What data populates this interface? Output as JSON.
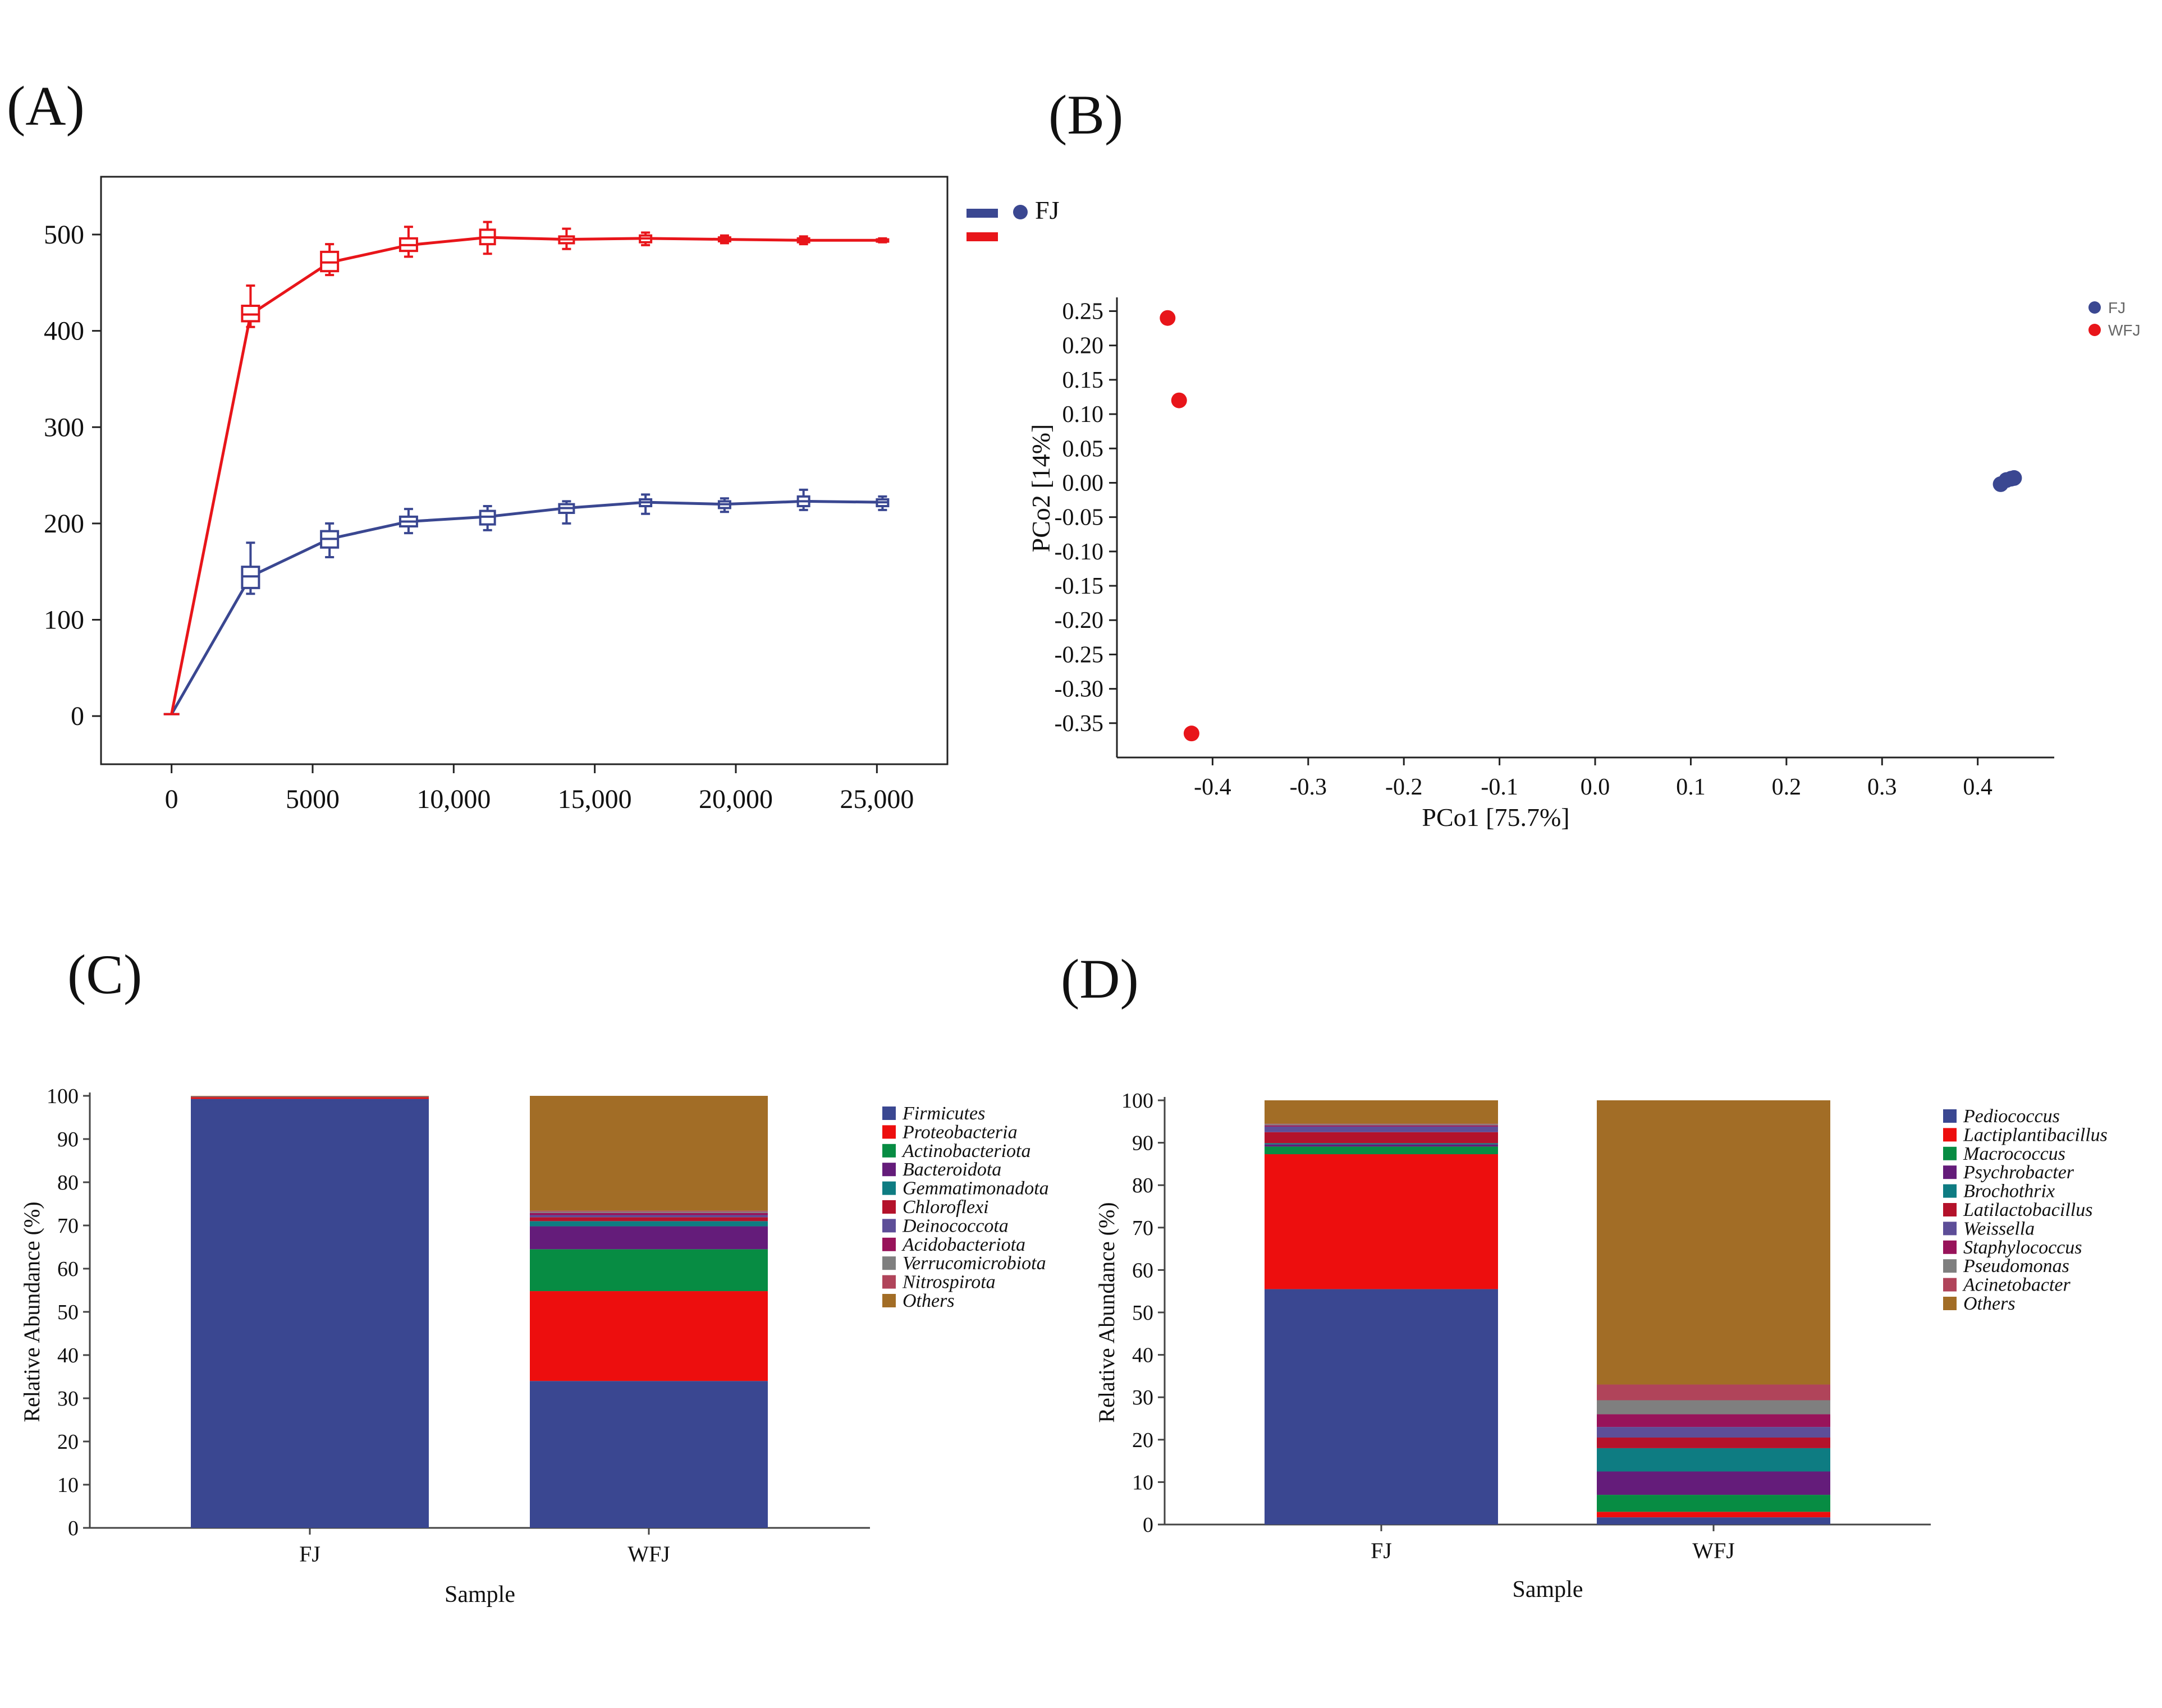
{
  "panels": {
    "A": {
      "label": "(A)"
    },
    "B": {
      "label": "(B)"
    },
    "C": {
      "label": "(C)"
    },
    "D": {
      "label": "(D)"
    }
  },
  "colors": {
    "navy": "#3a4791",
    "red": "#e8151a"
  },
  "chart_data": [
    {
      "panel": "A",
      "type": "line",
      "xlabel": "",
      "ylabel": "",
      "xlim": [
        -2500,
        27500
      ],
      "ylim": [
        -50,
        560
      ],
      "x_ticks": [
        0,
        5000,
        10000,
        15000,
        20000,
        25000
      ],
      "x_tick_labels": [
        "0",
        "5000",
        "10,000",
        "15,000",
        "20,000",
        "25,000"
      ],
      "y_ticks": [
        0,
        100,
        200,
        300,
        400,
        500
      ],
      "y_tick_labels": [
        "0",
        "100",
        "200",
        "300",
        "400",
        "500"
      ],
      "legend": {
        "position": "top-right",
        "entries": [
          "FJ"
        ]
      },
      "series": [
        {
          "name": "FJ",
          "color": "#3a4791",
          "points": [
            {
              "x": 0,
              "y": 2,
              "q1": 2,
              "q3": 2,
              "min": 2,
              "max": 2
            },
            {
              "x": 2800,
              "y": 145,
              "q1": 133,
              "q3": 155,
              "min": 127,
              "max": 180
            },
            {
              "x": 5600,
              "y": 184,
              "q1": 175,
              "q3": 192,
              "min": 165,
              "max": 200
            },
            {
              "x": 8400,
              "y": 202,
              "q1": 197,
              "q3": 207,
              "min": 190,
              "max": 215
            },
            {
              "x": 11200,
              "y": 207,
              "q1": 199,
              "q3": 213,
              "min": 193,
              "max": 218
            },
            {
              "x": 14000,
              "y": 216,
              "q1": 211,
              "q3": 220,
              "min": 200,
              "max": 223
            },
            {
              "x": 16800,
              "y": 222,
              "q1": 218,
              "q3": 225,
              "min": 210,
              "max": 230
            },
            {
              "x": 19600,
              "y": 220,
              "q1": 216,
              "q3": 223,
              "min": 212,
              "max": 226
            },
            {
              "x": 22400,
              "y": 223,
              "q1": 218,
              "q3": 228,
              "min": 214,
              "max": 235
            },
            {
              "x": 25200,
              "y": 222,
              "q1": 218,
              "q3": 225,
              "min": 214,
              "max": 228
            }
          ]
        },
        {
          "name": "",
          "color": "#e8151a",
          "points": [
            {
              "x": 0,
              "y": 2,
              "q1": 2,
              "q3": 2,
              "min": 2,
              "max": 2
            },
            {
              "x": 2800,
              "y": 417,
              "q1": 410,
              "q3": 426,
              "min": 404,
              "max": 447
            },
            {
              "x": 5600,
              "y": 471,
              "q1": 462,
              "q3": 482,
              "min": 458,
              "max": 490
            },
            {
              "x": 8400,
              "y": 489,
              "q1": 483,
              "q3": 496,
              "min": 477,
              "max": 508
            },
            {
              "x": 11200,
              "y": 497,
              "q1": 490,
              "q3": 505,
              "min": 480,
              "max": 513
            },
            {
              "x": 14000,
              "y": 495,
              "q1": 491,
              "q3": 498,
              "min": 485,
              "max": 506
            },
            {
              "x": 16800,
              "y": 496,
              "q1": 492,
              "q3": 499,
              "min": 489,
              "max": 502
            },
            {
              "x": 19600,
              "y": 495,
              "q1": 493,
              "q3": 497,
              "min": 491,
              "max": 499
            },
            {
              "x": 22400,
              "y": 494,
              "q1": 492,
              "q3": 496,
              "min": 490,
              "max": 498
            },
            {
              "x": 25200,
              "y": 494,
              "q1": 493,
              "q3": 495,
              "min": 492,
              "max": 496
            }
          ]
        }
      ]
    },
    {
      "panel": "B",
      "type": "scatter",
      "xlabel": "PCo1 [75.7%]",
      "ylabel": "PCo2 [14%]",
      "xlim": [
        -0.5,
        0.48
      ],
      "ylim": [
        -0.4,
        0.27
      ],
      "x_ticks": [
        -0.4,
        -0.3,
        -0.2,
        -0.1,
        0.0,
        0.1,
        0.2,
        0.3,
        0.4
      ],
      "x_tick_labels": [
        "-0.4",
        "-0.3",
        "-0.2",
        "-0.1",
        "0.0",
        "0.1",
        "0.2",
        "0.3",
        "0.4"
      ],
      "y_ticks": [
        0.25,
        0.2,
        0.15,
        0.1,
        0.05,
        0.0,
        -0.05,
        -0.1,
        -0.15,
        -0.2,
        -0.25,
        -0.3,
        -0.35
      ],
      "y_tick_labels": [
        "0.25",
        "0.20",
        "0.15",
        "0.10",
        "0.05",
        "0.00",
        "-0.05",
        "-0.10",
        "-0.15",
        "-0.20",
        "-0.25",
        "-0.30",
        "-0.35"
      ],
      "legend": {
        "position": "top-right",
        "entries": [
          "FJ",
          "WFJ"
        ]
      },
      "series": [
        {
          "name": "FJ",
          "color": "#3a4791",
          "points": [
            {
              "x": 0.424,
              "y": -0.002
            },
            {
              "x": 0.43,
              "y": 0.004
            },
            {
              "x": 0.435,
              "y": 0.006
            },
            {
              "x": 0.438,
              "y": 0.007
            }
          ]
        },
        {
          "name": "WFJ",
          "color": "#e8151a",
          "points": [
            {
              "x": -0.447,
              "y": 0.24
            },
            {
              "x": -0.435,
              "y": 0.12
            },
            {
              "x": -0.422,
              "y": -0.365
            }
          ]
        }
      ]
    },
    {
      "panel": "C",
      "type": "bar",
      "stacked": true,
      "xlabel": "Sample",
      "ylabel": "Relative Abundance (%)",
      "ylim": [
        0,
        100
      ],
      "y_ticks": [
        0,
        10,
        20,
        30,
        40,
        50,
        60,
        70,
        80,
        90,
        100
      ],
      "y_tick_labels": [
        "0",
        "10",
        "20",
        "30",
        "40",
        "50",
        "60",
        "70",
        "80",
        "90",
        "100"
      ],
      "categories": [
        "FJ",
        "WFJ"
      ],
      "legend": {
        "position": "right"
      },
      "series": [
        {
          "name": "Firmicutes",
          "color": "#3a4791",
          "values": [
            99.3,
            34.0
          ]
        },
        {
          "name": "Proteobacteria",
          "color": "#ed0e0e",
          "values": [
            0.4,
            20.8
          ]
        },
        {
          "name": "Actinobacteriota",
          "color": "#078c43",
          "values": [
            0.05,
            9.7
          ]
        },
        {
          "name": "Bacteroidota",
          "color": "#641c7a",
          "values": [
            0.05,
            5.3
          ]
        },
        {
          "name": "Gemmatimonadota",
          "color": "#0e7c82",
          "values": [
            0.02,
            1.2
          ]
        },
        {
          "name": "Chloroflexi",
          "color": "#b4122b",
          "values": [
            0.02,
            0.9
          ]
        },
        {
          "name": "Deinococcota",
          "color": "#5d4e98",
          "values": [
            0.02,
            0.5
          ]
        },
        {
          "name": "Acidobacteriota",
          "color": "#98135a",
          "values": [
            0.01,
            0.5
          ]
        },
        {
          "name": "Verrucomicrobiota",
          "color": "#7f7f7f",
          "values": [
            0.01,
            0.3
          ]
        },
        {
          "name": "Nitrospirota",
          "color": "#b0445a",
          "values": [
            0.01,
            0.2
          ]
        },
        {
          "name": "Others",
          "color": "#a26d26",
          "values": [
            0.11,
            26.6
          ]
        }
      ]
    },
    {
      "panel": "D",
      "type": "bar",
      "stacked": true,
      "xlabel": "Sample",
      "ylabel": "Relative Abundance (%)",
      "ylim": [
        0,
        100
      ],
      "y_ticks": [
        0,
        10,
        20,
        30,
        40,
        50,
        60,
        70,
        80,
        90,
        100
      ],
      "y_tick_labels": [
        "0",
        "10",
        "20",
        "30",
        "40",
        "50",
        "60",
        "70",
        "80",
        "90",
        "100"
      ],
      "categories": [
        "FJ",
        "WFJ"
      ],
      "legend": {
        "position": "right"
      },
      "series": [
        {
          "name": "Pediococcus",
          "color": "#3a4791",
          "values": [
            55.5,
            1.7
          ]
        },
        {
          "name": "Lactiplantibacillus",
          "color": "#ed0e0e",
          "values": [
            31.8,
            1.3
          ]
        },
        {
          "name": "Macrococcus",
          "color": "#078c43",
          "values": [
            1.8,
            4.0
          ]
        },
        {
          "name": "Psychrobacter",
          "color": "#641c7a",
          "values": [
            0.5,
            5.5
          ]
        },
        {
          "name": "Brochothrix",
          "color": "#0e7c82",
          "values": [
            0.3,
            5.5
          ]
        },
        {
          "name": "Latilactobacillus",
          "color": "#b4122b",
          "values": [
            2.6,
            2.5
          ]
        },
        {
          "name": "Weissella",
          "color": "#5d4e98",
          "values": [
            1.3,
            2.5
          ]
        },
        {
          "name": "Staphylococcus",
          "color": "#98135a",
          "values": [
            0.3,
            3.0
          ]
        },
        {
          "name": "Pseudomonas",
          "color": "#7f7f7f",
          "values": [
            0.3,
            3.3
          ]
        },
        {
          "name": "Acinetobacter",
          "color": "#b0445a",
          "values": [
            0.1,
            3.7
          ]
        },
        {
          "name": "Others",
          "color": "#a26d26",
          "values": [
            5.5,
            67.0
          ]
        }
      ]
    }
  ]
}
